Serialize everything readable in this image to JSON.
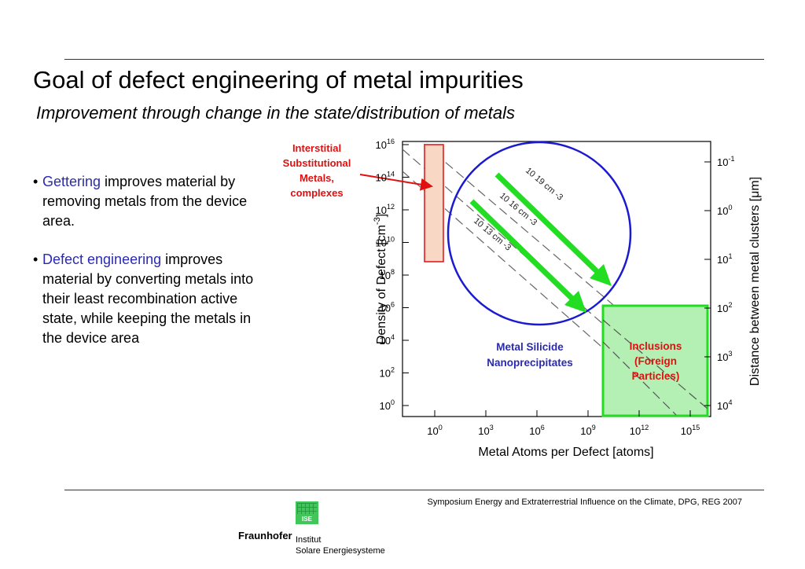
{
  "slide": {
    "title": "Goal of defect engineering of metal impurities",
    "subtitle": "Improvement through change in the state/distribution of metals"
  },
  "bullets": [
    {
      "highlight": "Gettering",
      "rest": " improves material by removing metals from the device area."
    },
    {
      "highlight": "Defect engineering",
      "rest": " improves material by converting metals into their least recombination active state, while keeping the metals in the device area"
    }
  ],
  "diagram": {
    "y_axis_label": "Density of Defect [cm",
    "y_axis_label_exp": "-3",
    "y_axis_label_end": "]",
    "x_axis_label": "Metal Atoms per Defect [atoms]",
    "right_axis_label": "Distance between metal clusters [μm]",
    "left_ticks": [
      {
        "base": "10",
        "exp": "16"
      },
      {
        "base": "10",
        "exp": "14"
      },
      {
        "base": "10",
        "exp": "12"
      },
      {
        "base": "10",
        "exp": "10"
      },
      {
        "base": "10",
        "exp": "8"
      },
      {
        "base": "10",
        "exp": "6"
      },
      {
        "base": "10",
        "exp": "4"
      },
      {
        "base": "10",
        "exp": "2"
      },
      {
        "base": "10",
        "exp": "0"
      }
    ],
    "bottom_ticks": [
      {
        "base": "10",
        "exp": "0"
      },
      {
        "base": "10",
        "exp": "3"
      },
      {
        "base": "10",
        "exp": "6"
      },
      {
        "base": "10",
        "exp": "9"
      },
      {
        "base": "10",
        "exp": "12"
      },
      {
        "base": "10",
        "exp": "15"
      }
    ],
    "right_ticks": [
      {
        "base": "10",
        "exp": "-1"
      },
      {
        "base": "10",
        "exp": "0"
      },
      {
        "base": "10",
        "exp": "1"
      },
      {
        "base": "10",
        "exp": "2"
      },
      {
        "base": "10",
        "exp": "3"
      },
      {
        "base": "10",
        "exp": "4"
      }
    ],
    "line_labels": [
      {
        "text": "10 19 cm -3"
      },
      {
        "text": "10 16 cm -3"
      },
      {
        "text": "10 13 cm -3"
      }
    ],
    "interstitial_label": [
      "Interstitial",
      "Substitutional",
      "Metals,",
      "complexes"
    ],
    "silicide_label": [
      "Metal Silicide",
      "Nanoprecipitates"
    ],
    "inclusions_label": [
      "Inclusions",
      "(Foreign",
      "Particles)"
    ],
    "colors": {
      "red_label": "#e01010",
      "blue_label": "#2a2ab0",
      "green_arrow": "#22dd22",
      "circle": "#1a1ad0",
      "box_fill_red": "#f8d8c4",
      "box_fill_green": "#b4f0b4"
    }
  },
  "footer": {
    "note": "Symposium Energy and Extraterrestrial Influence on the Climate, DPG, REG 2007",
    "brand": "Fraunhofer",
    "institute_line1": "Institut",
    "institute_line2": "Solare Energiesysteme",
    "logo_text": "ISE"
  }
}
